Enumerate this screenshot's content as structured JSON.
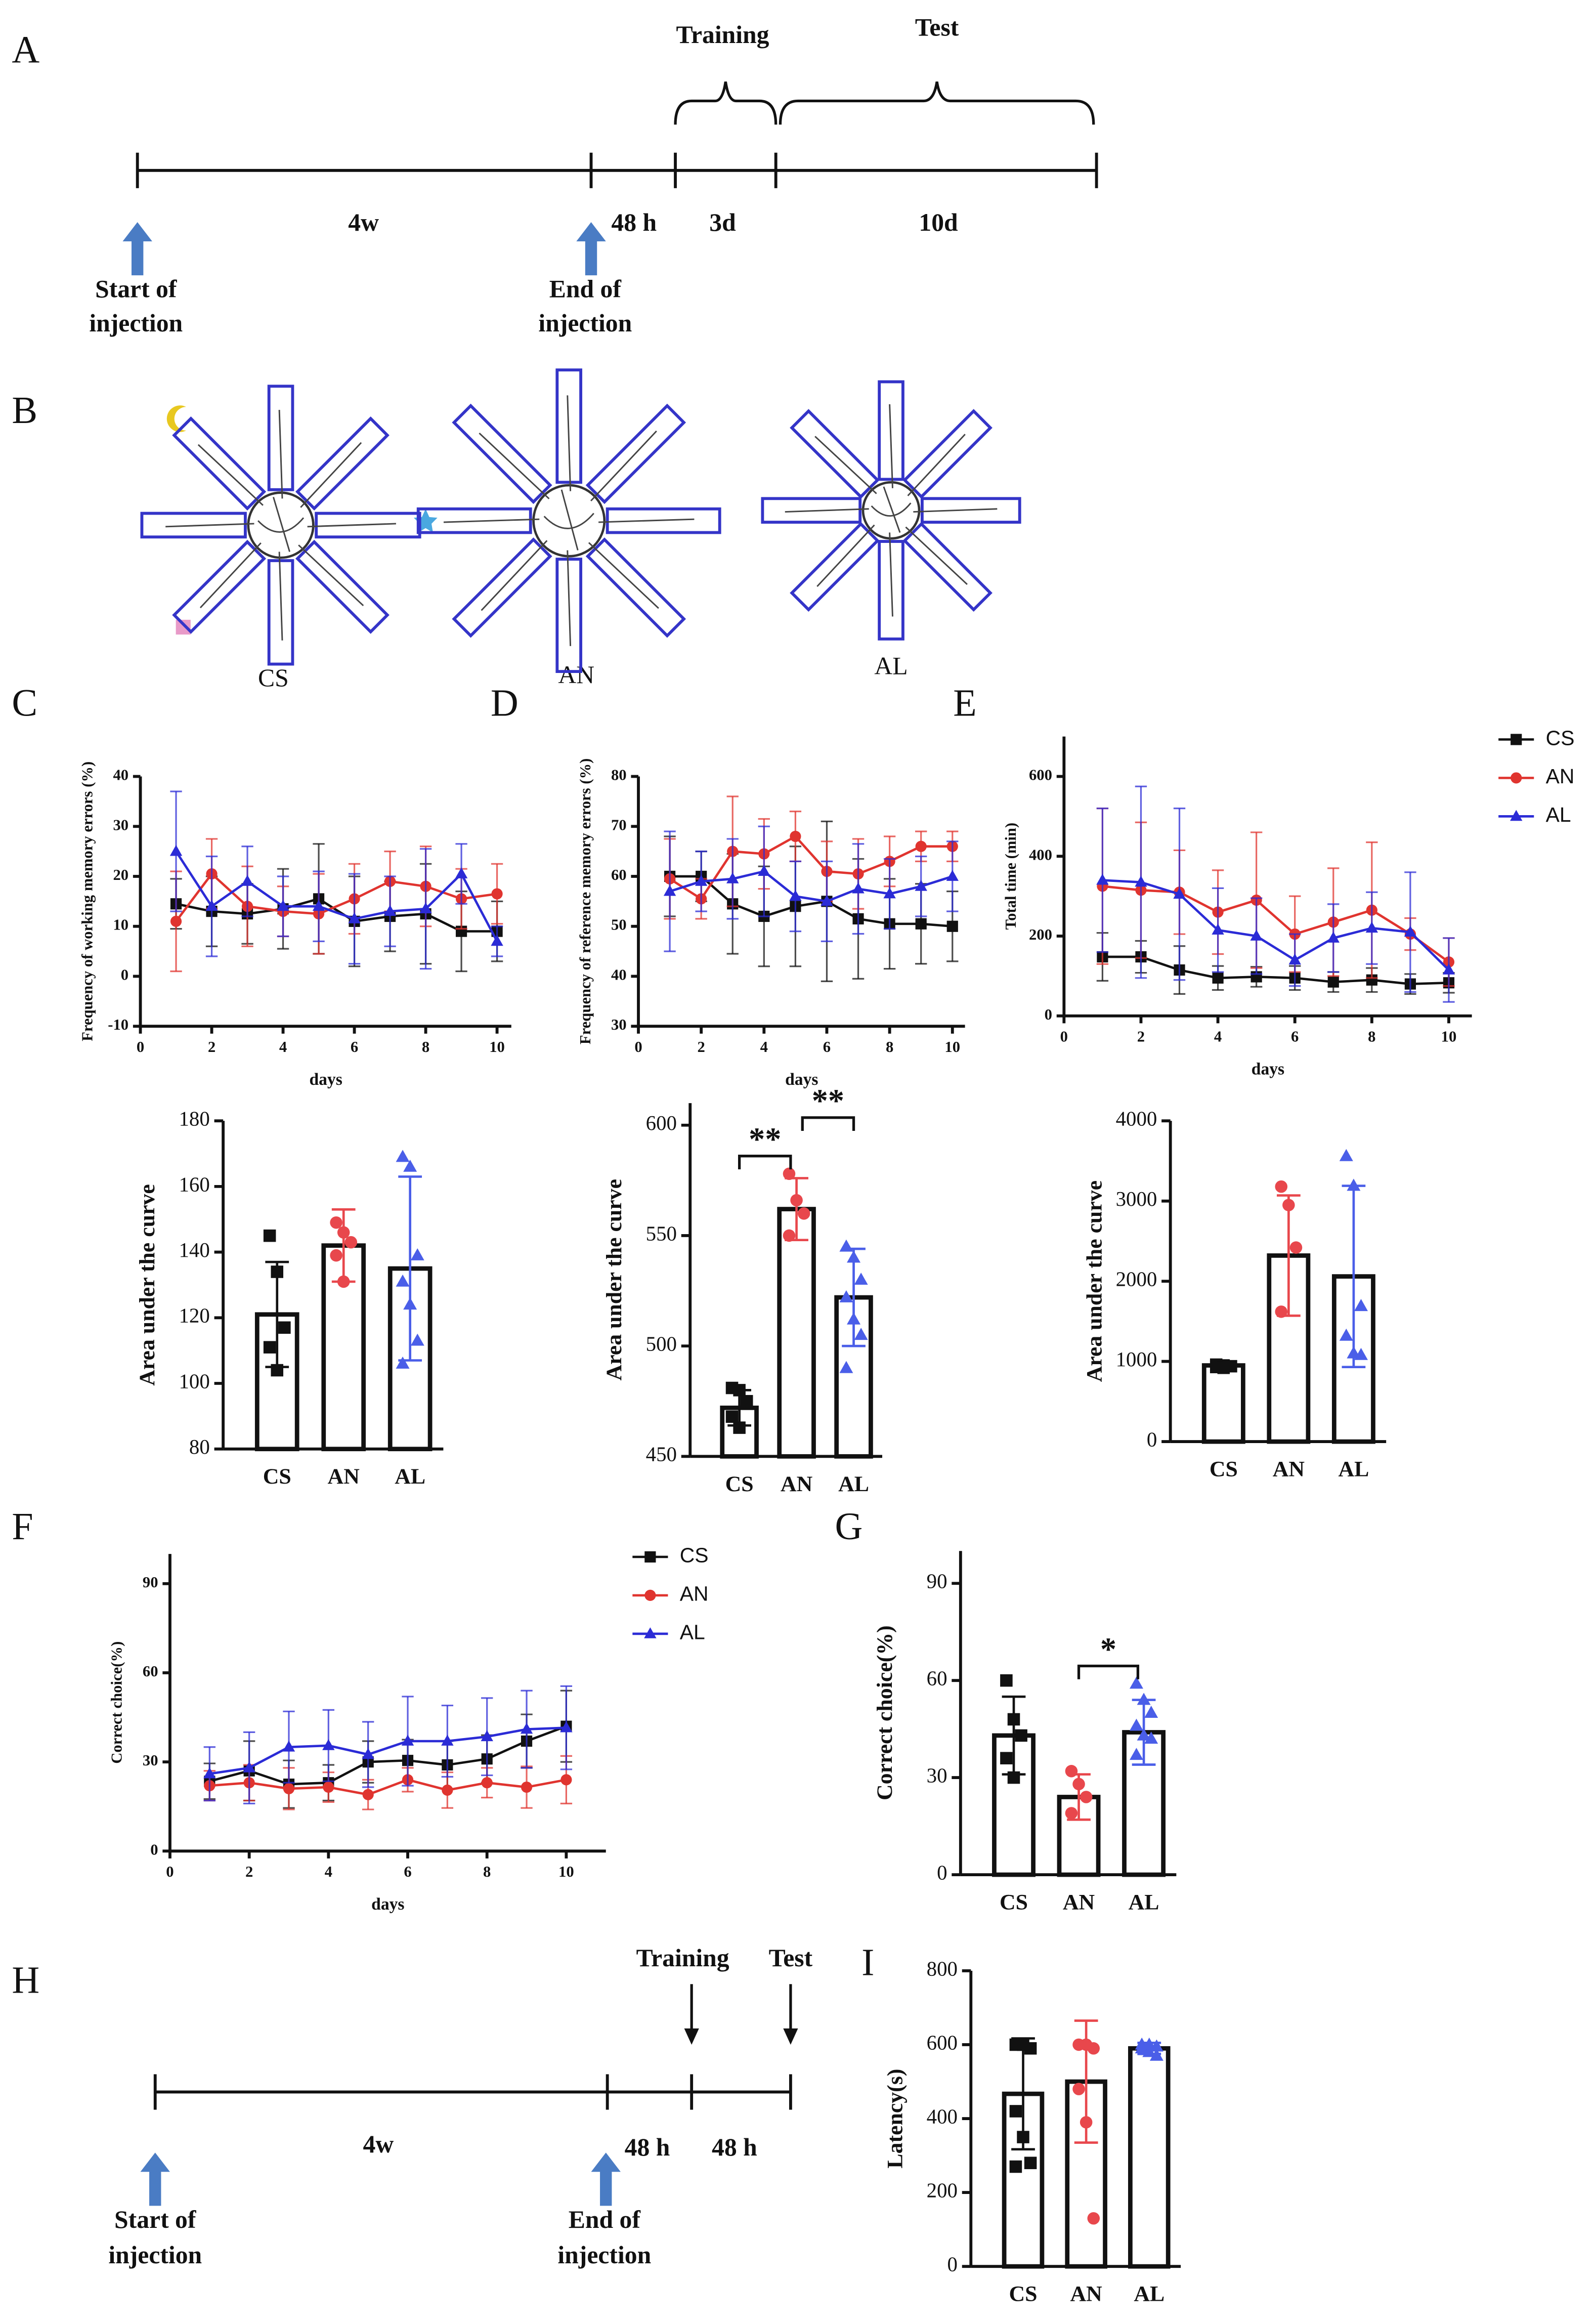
{
  "panels": [
    "A",
    "B",
    "C",
    "D",
    "E",
    "F",
    "G",
    "H",
    "I"
  ],
  "timeline_a": {
    "above": [
      "Training",
      "Test"
    ],
    "intervals": [
      "4w",
      "48 h",
      "3d",
      "10d"
    ],
    "start": [
      "Start of",
      "injection"
    ],
    "end": [
      "End of",
      "injection"
    ]
  },
  "maze_labels": [
    "CS",
    "AN",
    "AL"
  ],
  "timeline_h": {
    "above": [
      "Training",
      "Test"
    ],
    "intervals": [
      "4w",
      "48 h",
      "48 h"
    ],
    "start": [
      "Start of",
      "injection"
    ],
    "end": [
      "End of",
      "injection"
    ]
  },
  "chart_data": [
    {
      "type": "line",
      "xlabel": "days",
      "ylabel": "Frequency of working memory errors (%)",
      "x": [
        1,
        2,
        3,
        4,
        5,
        6,
        7,
        8,
        9,
        10
      ],
      "xlim": [
        0,
        10.4
      ],
      "xticks": [
        0,
        2,
        4,
        6,
        8,
        10
      ],
      "ylim": [
        -10,
        40
      ],
      "yticks": [
        -10,
        0,
        10,
        20,
        30,
        40
      ],
      "series": [
        {
          "color": "#111111",
          "marker": "square",
          "values": [
            14.5,
            13,
            12.5,
            13.5,
            15.5,
            11,
            12,
            12.5,
            9,
            9
          ],
          "errors": [
            5,
            7,
            6,
            8,
            11,
            9,
            7,
            10,
            8,
            6
          ]
        },
        {
          "color": "#e0342f",
          "marker": "circle",
          "values": [
            11,
            20.5,
            14,
            13,
            12.5,
            15.5,
            19,
            18,
            15.5,
            16.5
          ],
          "errors": [
            10,
            7,
            8,
            5,
            8,
            7,
            6,
            8,
            6,
            6
          ]
        },
        {
          "color": "#2b2bd6",
          "marker": "triangle",
          "values": [
            25,
            14,
            19,
            14,
            14,
            11.5,
            13,
            13.5,
            20.5,
            7
          ],
          "errors": [
            12,
            10,
            7,
            6,
            7,
            9,
            7,
            12,
            6,
            3
          ]
        }
      ]
    },
    {
      "type": "bar",
      "ylabel": "Area under the curve",
      "categories": [
        "CS",
        "AN",
        "AL"
      ],
      "values": [
        121,
        142,
        135
      ],
      "errors": [
        16,
        11,
        28
      ],
      "points": [
        [
          145,
          134,
          117,
          111,
          104
        ],
        [
          149,
          146,
          143,
          139,
          131
        ],
        [
          169,
          166,
          139,
          131,
          124,
          113,
          106
        ]
      ],
      "colors": [
        "#111111",
        "#e8474c",
        "#4a5ee8"
      ],
      "markers": [
        "square",
        "circle",
        "triangle"
      ],
      "ylim": [
        80,
        180
      ],
      "yticks": [
        80,
        100,
        120,
        140,
        160,
        180
      ]
    },
    {
      "type": "line",
      "xlabel": "days",
      "ylabel": "Frequency of reference memory errors (%)",
      "x": [
        1,
        2,
        3,
        4,
        5,
        6,
        7,
        8,
        9,
        10
      ],
      "xlim": [
        0,
        10.4
      ],
      "xticks": [
        0,
        2,
        4,
        6,
        8,
        10
      ],
      "ylim": [
        30,
        80
      ],
      "yticks": [
        30,
        40,
        50,
        60,
        70,
        80
      ],
      "series": [
        {
          "color": "#111111",
          "marker": "square",
          "values": [
            60,
            60,
            54.5,
            52,
            54,
            55,
            51.5,
            50.5,
            50.5,
            50
          ],
          "errors": [
            8,
            5,
            10,
            10,
            12,
            16,
            12,
            9,
            8,
            7
          ]
        },
        {
          "color": "#e0342f",
          "marker": "circle",
          "values": [
            59.5,
            55.5,
            65,
            64.5,
            68,
            61,
            60.5,
            63,
            66,
            66
          ],
          "errors": [
            8,
            4,
            11,
            7,
            5,
            6,
            7,
            5,
            3,
            3
          ]
        },
        {
          "color": "#2b2bd6",
          "marker": "triangle",
          "values": [
            57,
            59,
            59.5,
            61,
            56,
            55,
            57.5,
            56.5,
            58,
            60
          ],
          "errors": [
            12,
            6,
            8,
            9,
            7,
            8,
            9,
            7,
            6,
            7
          ]
        }
      ]
    },
    {
      "type": "bar",
      "ylabel": "Area under the curve",
      "categories": [
        "CS",
        "AN",
        "AL"
      ],
      "values": [
        472,
        562,
        522
      ],
      "errors": [
        8,
        14,
        22
      ],
      "points": [
        [
          481,
          480,
          475,
          468,
          463
        ],
        [
          578,
          566,
          560,
          550
        ],
        [
          545,
          540,
          530,
          522,
          512,
          505,
          490
        ]
      ],
      "colors": [
        "#111111",
        "#e8474c",
        "#4a5ee8"
      ],
      "markers": [
        "square",
        "circle",
        "triangle"
      ],
      "ylim": [
        450,
        610
      ],
      "yticks": [
        450,
        500,
        550,
        600
      ],
      "annotations": [
        {
          "text": "**",
          "between": [
            "CS",
            "AN"
          ]
        },
        {
          "text": "**",
          "between": [
            "AN",
            "AL"
          ]
        }
      ]
    },
    {
      "type": "line",
      "xlabel": "days",
      "ylabel": "Total time (min)",
      "legend": "right",
      "x": [
        1,
        2,
        3,
        4,
        5,
        6,
        7,
        8,
        9,
        10
      ],
      "xlim": [
        0,
        10.6
      ],
      "xticks": [
        0,
        2,
        4,
        6,
        8,
        10
      ],
      "ylim": [
        0,
        700
      ],
      "yticks": [
        0,
        200,
        400,
        600
      ],
      "series": [
        {
          "name": "CS",
          "color": "#111111",
          "marker": "square",
          "values": [
            148,
            148,
            115,
            95,
            98,
            95,
            85,
            90,
            80,
            83
          ],
          "errors": [
            60,
            40,
            60,
            30,
            25,
            30,
            25,
            30,
            25,
            25
          ]
        },
        {
          "name": "AN",
          "color": "#e0342f",
          "marker": "circle",
          "values": [
            325,
            315,
            310,
            260,
            290,
            205,
            235,
            265,
            205,
            135
          ],
          "errors": [
            195,
            170,
            105,
            105,
            170,
            95,
            135,
            170,
            40,
            60
          ]
        },
        {
          "name": "AL",
          "color": "#2b2bd6",
          "marker": "triangle",
          "values": [
            340,
            335,
            305,
            215,
            200,
            140,
            195,
            220,
            210,
            115
          ],
          "errors": [
            180,
            240,
            215,
            105,
            95,
            65,
            85,
            90,
            150,
            80
          ]
        }
      ]
    },
    {
      "type": "bar",
      "ylabel": "Area under the curve",
      "categories": [
        "CS",
        "AN",
        "AL"
      ],
      "values": [
        950,
        2320,
        2060
      ],
      "errors": [
        30,
        750,
        1130
      ],
      "points": [
        [
          960,
          950,
          940,
          930,
          920
        ],
        [
          3180,
          2950,
          2420,
          1620
        ],
        [
          3560,
          3190,
          1690,
          1320,
          1100,
          1080
        ]
      ],
      "colors": [
        "#111111",
        "#e8474c",
        "#4a5ee8"
      ],
      "markers": [
        "square",
        "circle",
        "triangle"
      ],
      "ylim": [
        0,
        4000
      ],
      "yticks": [
        0,
        1000,
        2000,
        3000,
        4000
      ]
    },
    {
      "type": "line",
      "xlabel": "days",
      "ylabel": "Correct choice(%)",
      "legend": "right",
      "x": [
        1,
        2,
        3,
        4,
        5,
        6,
        7,
        8,
        9,
        10
      ],
      "xlim": [
        0,
        11
      ],
      "xticks": [
        0,
        2,
        4,
        6,
        8,
        10
      ],
      "ylim": [
        0,
        100
      ],
      "yticks": [
        0,
        30,
        60,
        90
      ],
      "series": [
        {
          "name": "CS",
          "color": "#111111",
          "marker": "square",
          "values": [
            23.5,
            27,
            22.5,
            23,
            30,
            30.5,
            29,
            31,
            37,
            42
          ],
          "errors": [
            6,
            10,
            8,
            6,
            7,
            7,
            8,
            8,
            9,
            12
          ]
        },
        {
          "name": "AN",
          "color": "#e0342f",
          "marker": "circle",
          "values": [
            22,
            23,
            21,
            21.5,
            19,
            24,
            20.5,
            23,
            21.5,
            24
          ],
          "errors": [
            5,
            6,
            7,
            5,
            5,
            4,
            6,
            5,
            7,
            8
          ]
        },
        {
          "name": "AL",
          "color": "#2b2bd6",
          "marker": "triangle",
          "values": [
            26,
            28,
            35,
            35.5,
            32.5,
            37,
            37,
            38.5,
            41,
            41.5
          ],
          "errors": [
            9,
            12,
            12,
            12,
            11,
            15,
            12,
            13,
            13,
            14
          ]
        }
      ]
    },
    {
      "type": "bar",
      "ylabel": "Correct choice(%)",
      "categories": [
        "CS",
        "AN",
        "AL"
      ],
      "values": [
        43,
        24,
        44
      ],
      "errors": [
        12,
        7,
        10
      ],
      "points": [
        [
          60,
          48,
          43,
          36,
          30
        ],
        [
          32,
          28,
          24,
          19
        ],
        [
          59,
          54,
          50,
          46,
          43,
          42,
          37
        ]
      ],
      "colors": [
        "#111111",
        "#e8474c",
        "#4a5ee8"
      ],
      "markers": [
        "square",
        "circle",
        "triangle"
      ],
      "ylim": [
        0,
        100
      ],
      "yticks": [
        0,
        30,
        60,
        90
      ],
      "annotations": [
        {
          "text": "*",
          "between": [
            "AN",
            "AL"
          ]
        }
      ]
    },
    {
      "type": "bar",
      "ylabel": "Latency(s)",
      "categories": [
        "CS",
        "AN",
        "AL"
      ],
      "values": [
        467,
        500,
        590
      ],
      "errors": [
        150,
        165,
        15
      ],
      "points": [
        [
          600,
          600,
          590,
          420,
          350,
          280,
          270
        ],
        [
          600,
          600,
          590,
          480,
          390,
          130
        ],
        [
          600,
          600,
          595,
          590,
          580,
          570
        ]
      ],
      "colors": [
        "#111111",
        "#e8474c",
        "#4a5ee8"
      ],
      "markers": [
        "square",
        "circle",
        "triangle"
      ],
      "ylim": [
        0,
        800
      ],
      "yticks": [
        0,
        200,
        400,
        600,
        800
      ]
    }
  ]
}
